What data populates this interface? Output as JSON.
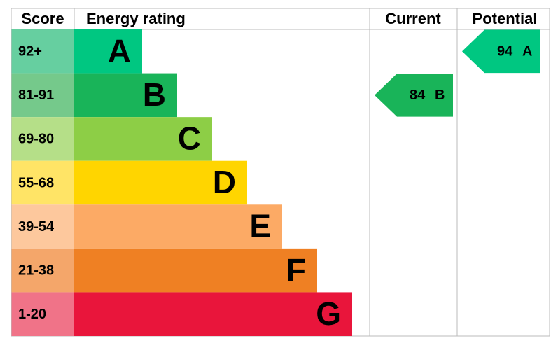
{
  "header": {
    "score": "Score",
    "rating": "Energy rating",
    "current": "Current",
    "potential": "Potential"
  },
  "bands": [
    {
      "range": "92+",
      "letter": "A",
      "color": "#00c781",
      "score_color": "#66cfa0"
    },
    {
      "range": "81-91",
      "letter": "B",
      "color": "#19b459",
      "score_color": "#75c98b"
    },
    {
      "range": "69-80",
      "letter": "C",
      "color": "#8dce46",
      "score_color": "#b5df88"
    },
    {
      "range": "55-68",
      "letter": "D",
      "color": "#ffd500",
      "score_color": "#ffe466"
    },
    {
      "range": "39-54",
      "letter": "E",
      "color": "#fcaa65",
      "score_color": "#fdc89d"
    },
    {
      "range": "21-38",
      "letter": "F",
      "color": "#ef8023",
      "score_color": "#f4a66a"
    },
    {
      "range": "1-20",
      "letter": "G",
      "color": "#e9153b",
      "score_color": "#f07388"
    }
  ],
  "current": {
    "value": 84,
    "rating": "B"
  },
  "potential": {
    "value": 94,
    "rating": "A"
  }
}
